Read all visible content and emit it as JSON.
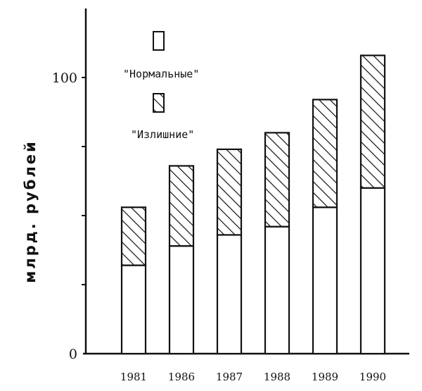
{
  "chart_data": {
    "type": "bar",
    "stacked": true,
    "categories": [
      "1981",
      "1986",
      "1987",
      "1988",
      "1989",
      "1990"
    ],
    "series": [
      {
        "name": "\"Нормальные\"",
        "pattern": "none",
        "values": [
          32,
          39,
          43,
          46,
          53,
          60
        ]
      },
      {
        "name": "\"Излишние\"",
        "pattern": "hatched",
        "values": [
          21,
          29,
          31,
          34,
          39,
          48
        ]
      }
    ],
    "xlabel": "",
    "ylabel": "млрд. рублей",
    "ylim": [
      0,
      130
    ],
    "yticks": [
      {
        "value": 0,
        "label": "0"
      },
      {
        "value": 100,
        "label": "100"
      }
    ],
    "grid": false,
    "legend_position": "top-left"
  },
  "colors": {
    "ink": "#111111",
    "fill": "#ffffff"
  }
}
